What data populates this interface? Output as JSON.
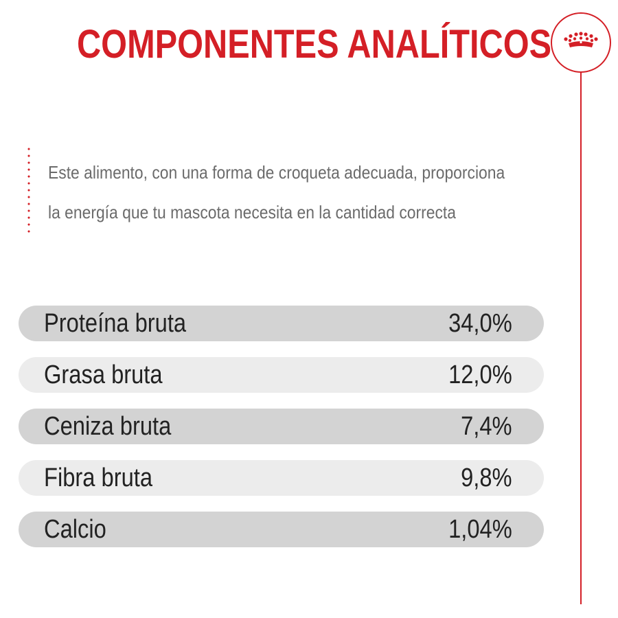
{
  "header": {
    "title": "COMPONENTES ANALÍTICOS",
    "brand_icon": "crown-icon",
    "accent_color": "#d41f26"
  },
  "intro": {
    "line1": "Este alimento, con una forma de croqueta adecuada, proporciona",
    "line2": "la energía que tu mascota necesita en la cantidad correcta"
  },
  "components": [
    {
      "label": "Proteína bruta",
      "value": "34,0%"
    },
    {
      "label": "Grasa bruta",
      "value": "12,0%"
    },
    {
      "label": "Ceniza bruta",
      "value": "7,4%"
    },
    {
      "label": "Fibra bruta",
      "value": "9,8%"
    },
    {
      "label": "Calcio",
      "value": "1,04%"
    }
  ]
}
